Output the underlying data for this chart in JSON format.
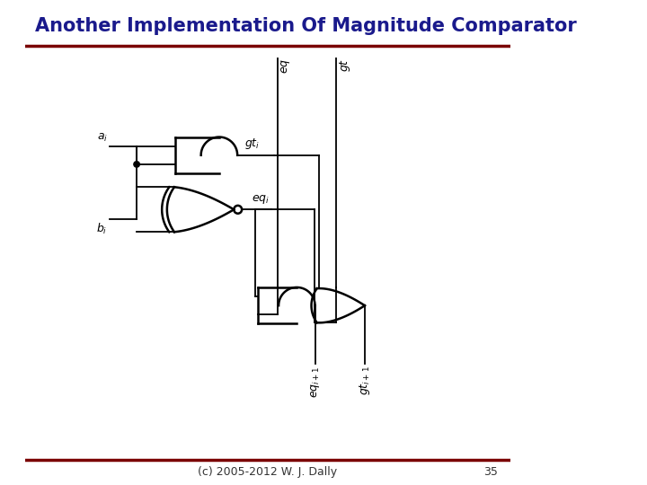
{
  "title": "Another Implementation Of Magnitude Comparator",
  "title_color": "#1a1a8c",
  "title_fontsize": 15,
  "bg_color": "#ffffff",
  "footer_text": "(c) 2005-2012 W. J. Dally",
  "footer_color": "#333333",
  "footer_fontsize": 9,
  "page_number": "35",
  "page_number_color": "#333333",
  "separator_color": "#7a0000",
  "separator_lw": 2.5,
  "gate_lw": 1.8,
  "wire_lw": 1.3,
  "gate_color": "#000000",
  "label_color": "#000000",
  "label_fontsize": 9
}
